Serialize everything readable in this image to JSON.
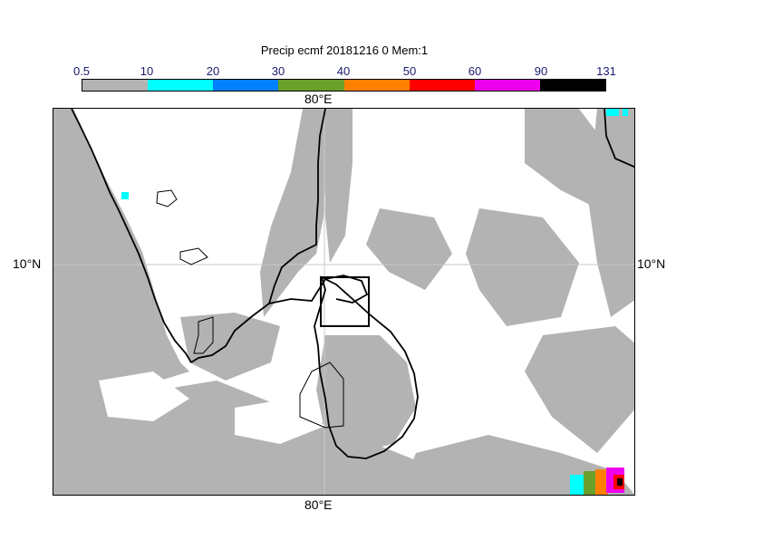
{
  "title": "Precip ecmf 20181216 0 Mem:1",
  "colorbar": {
    "ticks": [
      "0.5",
      "10",
      "20",
      "30",
      "40",
      "50",
      "60",
      "90",
      "131"
    ],
    "colors": [
      "#b3b3b3",
      "#00ffff",
      "#0080ff",
      "#6aa02a",
      "#ff8000",
      "#ff0000",
      "#ee00ee",
      "#000000"
    ]
  },
  "axes": {
    "lon_top": "80°E",
    "lon_bottom": "80°E",
    "lat_left": "10°N",
    "lat_right": "10°N"
  },
  "colors": {
    "precip_gray": "#b3b3b3",
    "coast": "#000000",
    "grid": "#c8c8c8"
  }
}
